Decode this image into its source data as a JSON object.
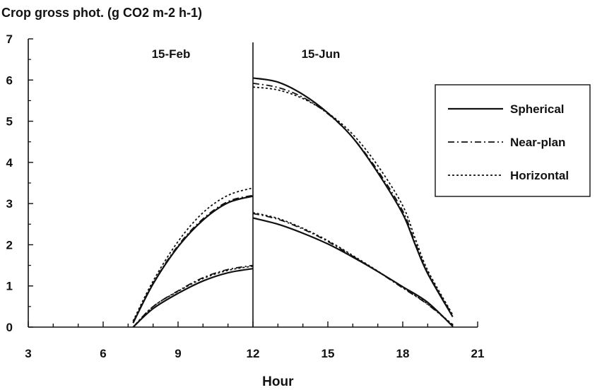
{
  "chart_data": {
    "type": "line",
    "title": "Crop gross phot. (g CO2 m-2 h-1)",
    "xlabel": "Hour",
    "ylabel": "",
    "xlim": [
      3,
      21
    ],
    "ylim": [
      0,
      7
    ],
    "x_ticks": [
      "3",
      "6",
      "9",
      "12",
      "15",
      "18",
      "21"
    ],
    "y_ticks": [
      "0",
      "1",
      "2",
      "3",
      "4",
      "5",
      "6",
      "7"
    ],
    "divider_x": 12,
    "panels": [
      {
        "label": "15-Feb",
        "x": 9
      },
      {
        "label": "15-Jun",
        "x": 15
      }
    ],
    "legend_position": "right",
    "series": [
      {
        "name": "Spherical",
        "style": "solid",
        "segments": [
          [
            [
              7.2,
              0
            ],
            [
              8,
              0.45
            ],
            [
              9,
              0.82
            ],
            [
              10,
              1.12
            ],
            [
              11,
              1.32
            ],
            [
              12,
              1.42
            ]
          ],
          [
            [
              7.2,
              0.1
            ],
            [
              8,
              1.05
            ],
            [
              9,
              1.95
            ],
            [
              10,
              2.6
            ],
            [
              11,
              3.02
            ],
            [
              12,
              3.18
            ]
          ],
          [
            [
              12,
              2.65
            ],
            [
              13,
              2.5
            ],
            [
              14,
              2.28
            ],
            [
              15,
              2.02
            ],
            [
              16,
              1.7
            ],
            [
              17,
              1.35
            ],
            [
              18,
              0.98
            ],
            [
              19,
              0.6
            ],
            [
              20,
              0.02
            ]
          ],
          [
            [
              12,
              6.05
            ],
            [
              13,
              5.95
            ],
            [
              14,
              5.65
            ],
            [
              15,
              5.2
            ],
            [
              16,
              4.6
            ],
            [
              17,
              3.75
            ],
            [
              18,
              2.75
            ],
            [
              18.5,
              2.0
            ],
            [
              19,
              1.3
            ],
            [
              20,
              0.25
            ]
          ]
        ]
      },
      {
        "name": "Near-plan",
        "style": "dashdot",
        "segments": [
          [
            [
              7.2,
              0
            ],
            [
              8,
              0.5
            ],
            [
              9,
              0.88
            ],
            [
              10,
              1.2
            ],
            [
              11,
              1.4
            ],
            [
              12,
              1.5
            ]
          ],
          [
            [
              7.2,
              0.12
            ],
            [
              8,
              1.07
            ],
            [
              9,
              1.98
            ],
            [
              10,
              2.63
            ],
            [
              11,
              3.05
            ],
            [
              12,
              3.2
            ]
          ],
          [
            [
              12,
              2.76
            ],
            [
              13,
              2.62
            ],
            [
              14,
              2.38
            ],
            [
              15,
              2.08
            ],
            [
              16,
              1.72
            ],
            [
              17,
              1.35
            ],
            [
              18,
              0.95
            ],
            [
              19,
              0.55
            ],
            [
              20,
              0.05
            ]
          ],
          [
            [
              12,
              5.92
            ],
            [
              13,
              5.82
            ],
            [
              14,
              5.58
            ],
            [
              15,
              5.18
            ],
            [
              16,
              4.6
            ],
            [
              17,
              3.8
            ],
            [
              18,
              2.82
            ],
            [
              18.5,
              2.05
            ],
            [
              19,
              1.32
            ],
            [
              20,
              0.28
            ]
          ]
        ]
      },
      {
        "name": "Horizontal",
        "style": "dotted",
        "segments": [
          [
            [
              7.2,
              0
            ],
            [
              8,
              0.5
            ],
            [
              9,
              0.87
            ],
            [
              10,
              1.18
            ],
            [
              11,
              1.38
            ],
            [
              12,
              1.48
            ]
          ],
          [
            [
              7.2,
              0.15
            ],
            [
              8,
              1.12
            ],
            [
              9,
              2.08
            ],
            [
              10,
              2.78
            ],
            [
              11,
              3.2
            ],
            [
              12,
              3.38
            ]
          ],
          [
            [
              12,
              2.78
            ],
            [
              13,
              2.64
            ],
            [
              14,
              2.4
            ],
            [
              15,
              2.1
            ],
            [
              16,
              1.74
            ],
            [
              17,
              1.36
            ],
            [
              18,
              0.96
            ],
            [
              19,
              0.56
            ],
            [
              20,
              0.06
            ]
          ],
          [
            [
              12,
              5.83
            ],
            [
              13,
              5.76
            ],
            [
              14,
              5.55
            ],
            [
              15,
              5.2
            ],
            [
              16,
              4.68
            ],
            [
              17,
              3.92
            ],
            [
              18,
              2.95
            ],
            [
              18.5,
              2.15
            ],
            [
              19,
              1.38
            ],
            [
              20,
              0.3
            ]
          ]
        ]
      }
    ]
  }
}
